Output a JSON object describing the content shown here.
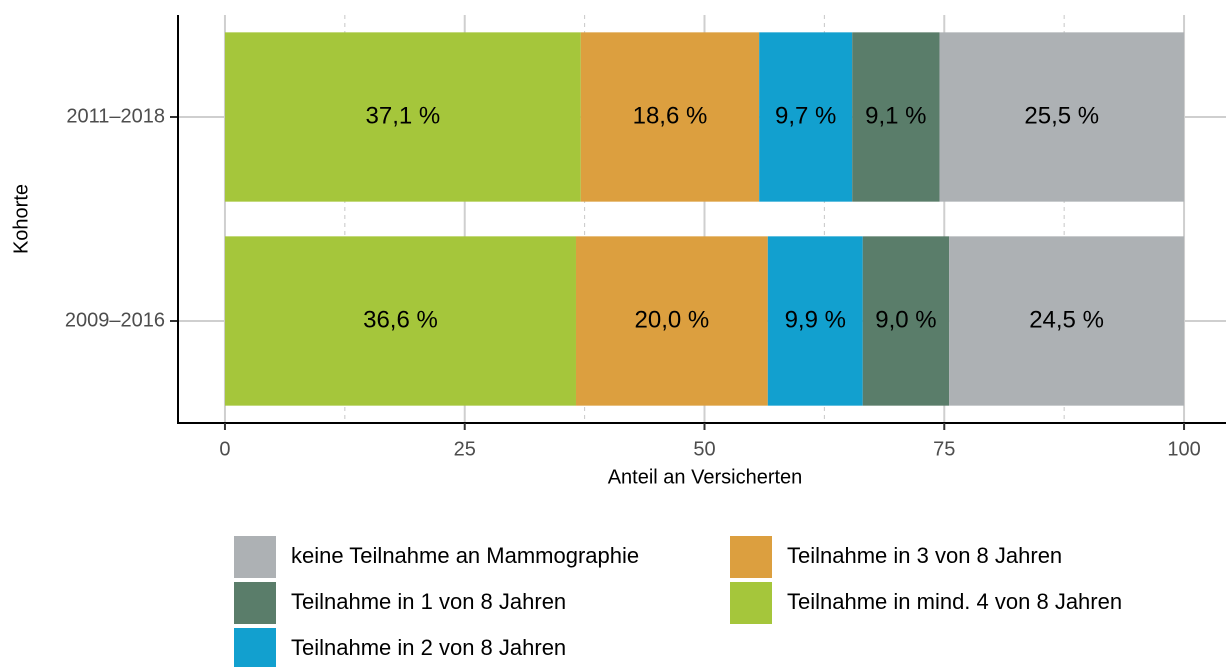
{
  "chart_data": {
    "type": "stacked-bar-horizontal",
    "xlabel": "Anteil an Versicherten",
    "ylabel": "Kohorte",
    "categories": [
      "2011–2018",
      "2009–2016"
    ],
    "series": [
      {
        "name": "keine Teilnahme an Mammographie",
        "color": "#adb1b4",
        "values": [
          25.5,
          24.5
        ],
        "value_labels": [
          "25,5 %",
          "24,5 %"
        ]
      },
      {
        "name": "Teilnahme in 1 von 8 Jahren",
        "color": "#5a7d6a",
        "values": [
          9.1,
          9.0
        ],
        "value_labels": [
          "9,1 %",
          "9,0 %"
        ]
      },
      {
        "name": "Teilnahme in 2 von 8 Jahren",
        "color": "#12a0cf",
        "values": [
          9.7,
          9.9
        ],
        "value_labels": [
          "9,7 %",
          "9,9 %"
        ]
      },
      {
        "name": "Teilnahme in 3 von 8 Jahren",
        "color": "#dc9f3f",
        "values": [
          18.6,
          20.0
        ],
        "value_labels": [
          "18,6 %",
          "20,0 %"
        ]
      },
      {
        "name": "Teilnahme in mind. 4 von 8 Jahren",
        "color": "#a5c63b",
        "values": [
          37.1,
          36.6
        ],
        "value_labels": [
          "37,1 %",
          "36,6 %"
        ]
      }
    ],
    "xlim": [
      -5,
      105
    ],
    "xticks": [
      0,
      25,
      50,
      75,
      100
    ],
    "xminorticks": [
      12.5,
      37.5,
      62.5,
      87.5
    ],
    "grid": true,
    "legend": "bottom"
  }
}
